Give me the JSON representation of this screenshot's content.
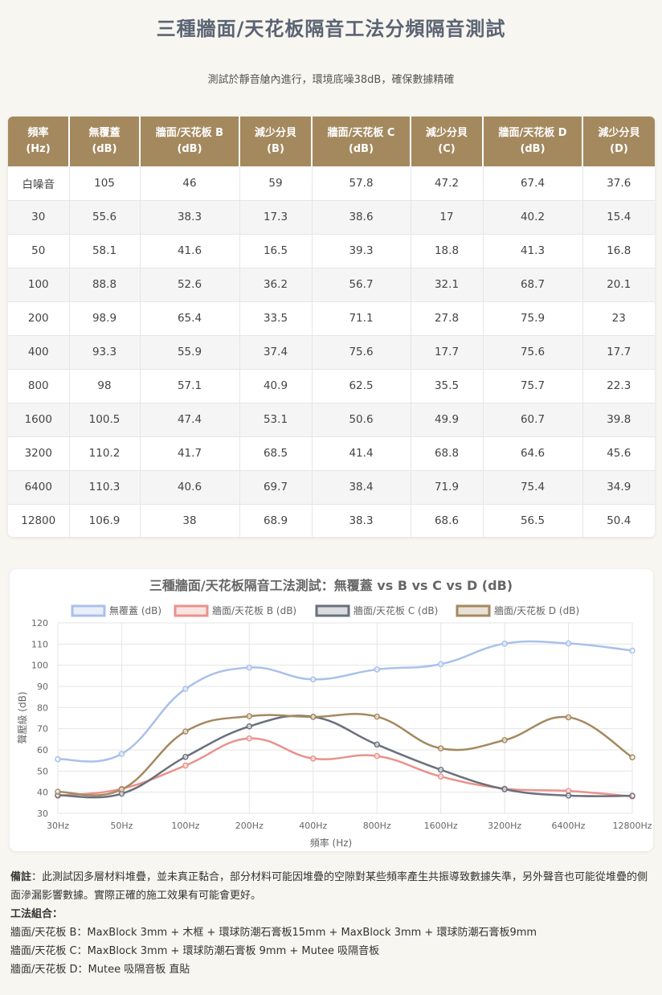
{
  "page": {
    "title": "三種牆面/天花板隔音工法分頻隔音測試",
    "subtitle": "測試於靜音艙內進行，環境底噪38dB，確保數據精確"
  },
  "table": {
    "headers": [
      [
        "頻率",
        "(Hz)"
      ],
      [
        "無覆蓋",
        "(dB)"
      ],
      [
        "牆面/天花板 B",
        "(dB)"
      ],
      [
        "減少分貝",
        "(B)"
      ],
      [
        "牆面/天花板 C",
        "(dB)"
      ],
      [
        "減少分貝",
        "(C)"
      ],
      [
        "牆面/天花板 D",
        "(dB)"
      ],
      [
        "減少分貝",
        "(D)"
      ]
    ],
    "rows": [
      [
        "白噪音",
        "105",
        "46",
        "59",
        "57.8",
        "47.2",
        "67.4",
        "37.6"
      ],
      [
        "30",
        "55.6",
        "38.3",
        "17.3",
        "38.6",
        "17",
        "40.2",
        "15.4"
      ],
      [
        "50",
        "58.1",
        "41.6",
        "16.5",
        "39.3",
        "18.8",
        "41.3",
        "16.8"
      ],
      [
        "100",
        "88.8",
        "52.6",
        "36.2",
        "56.7",
        "32.1",
        "68.7",
        "20.1"
      ],
      [
        "200",
        "98.9",
        "65.4",
        "33.5",
        "71.1",
        "27.8",
        "75.9",
        "23"
      ],
      [
        "400",
        "93.3",
        "55.9",
        "37.4",
        "75.6",
        "17.7",
        "75.6",
        "17.7"
      ],
      [
        "800",
        "98",
        "57.1",
        "40.9",
        "62.5",
        "35.5",
        "75.7",
        "22.3"
      ],
      [
        "1600",
        "100.5",
        "47.4",
        "53.1",
        "50.6",
        "49.9",
        "60.7",
        "39.8"
      ],
      [
        "3200",
        "110.2",
        "41.7",
        "68.5",
        "41.4",
        "68.8",
        "64.6",
        "45.6"
      ],
      [
        "6400",
        "110.3",
        "40.6",
        "69.7",
        "38.4",
        "71.9",
        "75.4",
        "34.9"
      ],
      [
        "12800",
        "106.9",
        "38",
        "68.9",
        "38.3",
        "68.6",
        "56.5",
        "50.4"
      ]
    ]
  },
  "chart_data": {
    "type": "line",
    "title": "三種牆面/天花板隔音工法測試：無覆蓋 vs B vs C vs D (dB)",
    "xlabel": "頻率 (Hz)",
    "ylabel": "聲壓級 (dB)",
    "categories": [
      "30Hz",
      "50Hz",
      "100Hz",
      "200Hz",
      "400Hz",
      "800Hz",
      "1600Hz",
      "3200Hz",
      "6400Hz",
      "12800Hz"
    ],
    "ylim": [
      30,
      120
    ],
    "yticks": [
      30,
      40,
      50,
      60,
      70,
      80,
      90,
      100,
      110,
      120
    ],
    "grid": true,
    "legend": "top",
    "series": [
      {
        "name": "無覆蓋 (dB)",
        "color": "#a9c1ea",
        "values": [
          55.6,
          58.1,
          88.8,
          98.9,
          93.3,
          98,
          100.5,
          110.2,
          110.3,
          106.9
        ]
      },
      {
        "name": "牆面/天花板 B (dB)",
        "color": "#e9928c",
        "values": [
          38.3,
          41.6,
          52.6,
          65.4,
          55.9,
          57.1,
          47.4,
          41.7,
          40.6,
          38
        ]
      },
      {
        "name": "牆面/天花板 C (dB)",
        "color": "#6a707c",
        "values": [
          38.6,
          39.3,
          56.7,
          71.1,
          75.6,
          62.5,
          50.6,
          41.4,
          38.4,
          38.3
        ]
      },
      {
        "name": "牆面/天花板 D (dB)",
        "color": "#a4895f",
        "values": [
          40.2,
          41.3,
          68.7,
          75.9,
          75.6,
          75.7,
          60.7,
          64.6,
          75.4,
          56.5
        ]
      }
    ]
  },
  "notes": {
    "remark_label": "備註",
    "remark_text": "：此測試因多層材料堆疊，並未真正黏合，部分材料可能因堆疊的空隙對某些頻率產生共振導致數據失準，另外聲音也可能從堆疊的側面滲漏影響數據。實際正確的施工效果有可能會更好。",
    "methods_label": "工法組合：",
    "methods": [
      "牆面/天花板 B：MaxBlock 3mm + 木框 + 環球防潮石膏板15mm + MaxBlock 3mm + 環球防潮石膏板9mm",
      "牆面/天花板 C：MaxBlock 3mm + 環球防潮石膏板 9mm + Mutee 吸隔音板",
      "牆面/天花板 D：Mutee 吸隔音板 直貼"
    ]
  }
}
